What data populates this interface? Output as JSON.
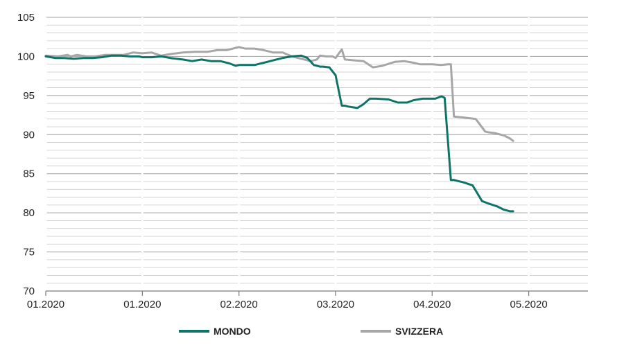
{
  "chart_data": {
    "type": "line",
    "ylim": [
      70,
      105
    ],
    "y_ticks": [
      70,
      75,
      80,
      85,
      90,
      95,
      100,
      105
    ],
    "x_ticks": [
      {
        "x": 0,
        "label": "01.2020"
      },
      {
        "x": 31,
        "label": "01.2020"
      },
      {
        "x": 62,
        "label": "02.2020"
      },
      {
        "x": 93,
        "label": "03.2020"
      },
      {
        "x": 124,
        "label": "04.2020"
      },
      {
        "x": 155,
        "label": "05.2020"
      }
    ],
    "xlim": [
      0,
      174
    ],
    "grid": true,
    "legend_position": "bottom",
    "series": [
      {
        "name": "MONDO",
        "color": "#0e7468",
        "x": [
          0,
          3,
          6,
          9,
          12,
          15,
          18,
          21,
          24,
          27,
          30,
          31,
          34,
          37,
          40,
          44,
          47,
          50,
          53,
          56,
          59,
          61,
          62,
          64,
          67,
          70,
          73,
          76,
          79,
          82,
          84,
          86,
          88,
          89,
          91,
          92,
          93,
          95,
          96,
          97,
          100,
          102,
          104,
          106,
          110,
          113,
          116,
          118,
          121,
          122,
          125,
          127,
          128,
          130,
          131,
          132,
          134,
          137,
          140,
          142,
          145,
          147,
          149,
          150
        ],
        "y": [
          100.0,
          99.8,
          99.8,
          99.7,
          99.8,
          99.8,
          99.9,
          100.1,
          100.1,
          100.0,
          100.0,
          99.9,
          99.9,
          100.0,
          99.8,
          99.6,
          99.4,
          99.6,
          99.4,
          99.4,
          99.1,
          98.8,
          98.9,
          98.9,
          98.9,
          99.2,
          99.5,
          99.8,
          100.0,
          100.1,
          99.8,
          98.9,
          98.7,
          98.7,
          98.6,
          98.1,
          97.6,
          93.7,
          93.7,
          93.6,
          93.4,
          93.9,
          94.6,
          94.6,
          94.5,
          94.1,
          94.1,
          94.4,
          94.6,
          94.6,
          94.6,
          94.9,
          94.7,
          84.2,
          84.2,
          84.1,
          83.9,
          83.5,
          81.5,
          81.2,
          80.8,
          80.4,
          80.2,
          80.2
        ]
      },
      {
        "name": "SVIZZERA",
        "color": "#a6a6a6",
        "x": [
          0,
          4,
          7,
          8,
          10,
          13,
          16,
          19,
          22,
          25,
          28,
          31,
          34,
          37,
          40,
          44,
          48,
          52,
          55,
          58,
          61,
          62,
          64,
          67,
          70,
          73,
          76,
          79,
          82,
          85,
          87,
          88,
          90,
          92,
          93,
          95,
          96,
          99,
          102,
          105,
          108,
          112,
          115,
          118,
          120,
          124,
          127,
          129,
          130,
          131,
          134,
          138,
          141,
          142,
          144,
          147,
          149,
          150
        ],
        "y": [
          100.1,
          100.0,
          100.2,
          100.0,
          100.2,
          100.0,
          100.0,
          100.2,
          100.2,
          100.2,
          100.5,
          100.4,
          100.5,
          100.1,
          100.3,
          100.5,
          100.6,
          100.6,
          100.8,
          100.8,
          101.1,
          101.2,
          101.0,
          101.0,
          100.8,
          100.5,
          100.5,
          100.0,
          99.7,
          99.4,
          99.6,
          100.1,
          100.0,
          100.0,
          99.8,
          100.9,
          99.6,
          99.5,
          99.4,
          98.6,
          98.8,
          99.3,
          99.4,
          99.2,
          99.0,
          99.0,
          98.9,
          99.0,
          99.0,
          92.3,
          92.2,
          92.0,
          90.4,
          90.3,
          90.2,
          89.9,
          89.5,
          89.2
        ]
      }
    ]
  }
}
